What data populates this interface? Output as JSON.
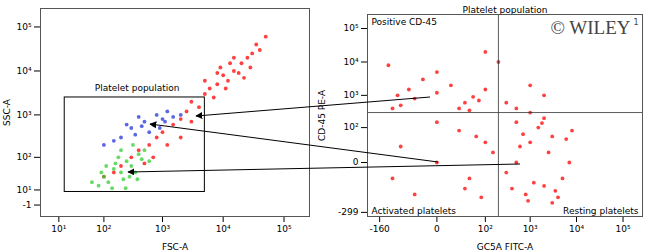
{
  "chart_data": [
    {
      "type": "scatter",
      "log": true,
      "grid": false,
      "x_label": "FSC-A",
      "y_label": "SSC-A",
      "xlim": [
        0,
        262144
      ],
      "ylim": [
        -10,
        262144
      ],
      "xticks": [
        {
          "value": 10,
          "label": "10¹"
        },
        {
          "value": 100,
          "label": "10²"
        },
        {
          "value": 1000,
          "label": "10³"
        },
        {
          "value": 10000,
          "label": "10⁴"
        },
        {
          "value": 100000,
          "label": "10⁵"
        }
      ],
      "yticks": [
        -1,
        {
          "value": 10,
          "label": "10¹"
        },
        {
          "value": 100,
          "label": "10²"
        },
        {
          "value": 1000,
          "label": "10³"
        },
        {
          "value": 10000,
          "label": "10⁴"
        },
        {
          "value": 100000,
          "label": "10⁵"
        }
      ],
      "gate": {
        "label": "Platelet population",
        "x": [
          15,
          5000
        ],
        "y": [
          8,
          2500
        ]
      },
      "series": [
        {
          "color": "#ff0000",
          "points": [
            [
              3000,
              2000
            ],
            [
              5000,
              3000
            ],
            [
              8000,
              5000
            ],
            [
              10000,
              8000
            ],
            [
              15000,
              10000
            ],
            [
              20000,
              15000
            ],
            [
              12000,
              6000
            ],
            [
              6000,
              4000
            ],
            [
              25000,
              20000
            ],
            [
              30000,
              25000
            ],
            [
              9000,
              12000
            ],
            [
              7000,
              2500
            ],
            [
              4000,
              1500
            ],
            [
              18000,
              9000
            ],
            [
              40000,
              30000
            ],
            [
              15000,
              20000
            ],
            [
              22000,
              7000
            ],
            [
              11000,
              4000
            ],
            [
              5000,
              6000
            ],
            [
              8000,
              9000
            ],
            [
              2500,
              1200
            ],
            [
              2000,
              800
            ],
            [
              1500,
              600
            ],
            [
              1000,
              400
            ],
            [
              800,
              300
            ],
            [
              600,
              200
            ],
            [
              400,
              150
            ],
            [
              300,
              100
            ],
            [
              200,
              60
            ],
            [
              150,
              40
            ],
            [
              100,
              30
            ],
            [
              1200,
              200
            ],
            [
              700,
              100
            ],
            [
              500,
              70
            ],
            [
              2000,
              300
            ],
            [
              3000,
              700
            ],
            [
              50000,
              60000
            ],
            [
              35000,
              40000
            ],
            [
              28000,
              12000
            ],
            [
              13000,
              15000
            ]
          ]
        },
        {
          "color": "#33cc33",
          "points": [
            [
              100,
              30
            ],
            [
              150,
              50
            ],
            [
              200,
              40
            ],
            [
              250,
              80
            ],
            [
              300,
              60
            ],
            [
              120,
              20
            ],
            [
              80,
              15
            ],
            [
              180,
              100
            ],
            [
              400,
              120
            ],
            [
              350,
              40
            ],
            [
              220,
              25
            ],
            [
              160,
              70
            ],
            [
              90,
              40
            ],
            [
              500,
              150
            ],
            [
              280,
              30
            ],
            [
              140,
              12
            ],
            [
              60,
              20
            ],
            [
              450,
              90
            ],
            [
              320,
              200
            ],
            [
              200,
              150
            ],
            [
              110,
              60
            ],
            [
              600,
              80
            ],
            [
              240,
              12
            ],
            [
              380,
              25
            ]
          ]
        },
        {
          "color": "#2233dd",
          "points": [
            [
              200,
              300
            ],
            [
              300,
              500
            ],
            [
              500,
              700
            ],
            [
              800,
              1000
            ],
            [
              1000,
              800
            ],
            [
              150,
              250
            ],
            [
              400,
              900
            ],
            [
              700,
              600
            ],
            [
              1200,
              1200
            ],
            [
              600,
              400
            ],
            [
              250,
              600
            ],
            [
              900,
              500
            ],
            [
              350,
              350
            ],
            [
              1500,
              900
            ],
            [
              100,
              200
            ],
            [
              2000,
              1000
            ],
            [
              450,
              550
            ],
            [
              1100,
              700
            ]
          ]
        }
      ]
    },
    {
      "type": "scatter",
      "log": true,
      "grid": false,
      "title": "Platelet population",
      "x_label": "GC5A FITC-A",
      "y_label": "CD-45 PE-A",
      "xlim": [
        -300,
        262144
      ],
      "ylim": [
        -400,
        262144
      ],
      "xticks": [
        -160,
        0,
        {
          "value": 100,
          "label": "10²"
        },
        {
          "value": 1000,
          "label": "10³"
        },
        {
          "value": 10000,
          "label": "10⁴"
        },
        {
          "value": 100000,
          "label": "10⁵"
        }
      ],
      "yticks": [
        -299,
        0,
        {
          "value": 100,
          "label": "10²"
        },
        {
          "value": 1000,
          "label": "10³"
        },
        {
          "value": 10000,
          "label": "10⁴"
        },
        {
          "value": 100000,
          "label": "10⁵"
        }
      ],
      "quadrant": {
        "x": 200,
        "y": 300,
        "labels": [
          "Positive CD-45",
          "Activated platelets",
          "Resting platelets"
        ]
      },
      "watermark": {
        "text": "© WILEY",
        "mark": "1"
      },
      "series": [
        {
          "color": "#ff0000",
          "points": [
            [
              -50,
              500
            ],
            [
              -20,
              800
            ],
            [
              0,
              1200
            ],
            [
              30,
              600
            ],
            [
              -80,
              400
            ],
            [
              10,
              2000
            ],
            [
              50,
              900
            ],
            [
              -30,
              1500
            ],
            [
              20,
              400
            ],
            [
              -10,
              3000
            ],
            [
              70,
              700
            ],
            [
              -60,
              1000
            ],
            [
              0,
              5000
            ],
            [
              100,
              1500
            ],
            [
              40,
              350
            ],
            [
              -50,
              20
            ],
            [
              0,
              0
            ],
            [
              30,
              -50
            ],
            [
              60,
              50
            ],
            [
              -80,
              -20
            ],
            [
              100,
              30
            ],
            [
              20,
              80
            ],
            [
              -20,
              -80
            ],
            [
              80,
              -100
            ],
            [
              150,
              10
            ],
            [
              0,
              150
            ],
            [
              40,
              -20
            ],
            [
              500,
              0
            ],
            [
              1000,
              30
            ],
            [
              2000,
              -40
            ],
            [
              3000,
              50
            ],
            [
              5000,
              -20
            ],
            [
              800,
              -80
            ],
            [
              1500,
              100
            ],
            [
              4000,
              -100
            ],
            [
              6000,
              40
            ],
            [
              700,
              60
            ],
            [
              1200,
              -30
            ],
            [
              2500,
              10
            ],
            [
              3500,
              -60
            ],
            [
              7000,
              0
            ],
            [
              400,
              -50
            ],
            [
              900,
              -130
            ],
            [
              1800,
              140
            ],
            [
              600,
              20
            ],
            [
              300,
              -10
            ],
            [
              8000,
              80
            ],
            [
              2000,
              200
            ],
            [
              1000,
              300
            ],
            [
              500,
              150
            ],
            [
              3000,
              -150
            ],
            [
              200,
              10000
            ],
            [
              1000,
              2000
            ],
            [
              300,
              600
            ],
            [
              -100,
              8000
            ],
            [
              2000,
              1000
            ],
            [
              500,
              400
            ],
            [
              100,
              20000
            ]
          ]
        }
      ]
    }
  ]
}
